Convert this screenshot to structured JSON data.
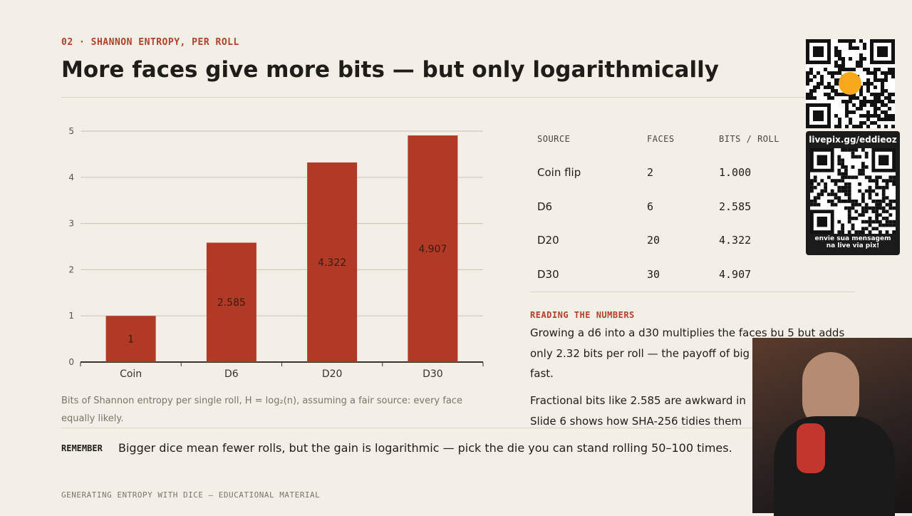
{
  "slide": {
    "eyebrow": "02 · SHANNON ENTROPY, PER ROLL",
    "title": "More faces give more bits — but only logarithmically",
    "caption": "Bits of Shannon entropy per single roll, H = log₂(n), assuming a fair source: every face equally likely.",
    "table": {
      "header": [
        "SOURCE",
        "FACES",
        "BITS / ROLL"
      ],
      "rows": [
        [
          "Coin flip",
          "2",
          "1.000"
        ],
        [
          "D6",
          "6",
          "2.585"
        ],
        [
          "D20",
          "20",
          "4.322"
        ],
        [
          "D30",
          "30",
          "4.907"
        ]
      ]
    },
    "reading": {
      "title": "READING THE NUMBERS",
      "lines": [
        "Growing a d6 into a d30 multiplies the faces bu 5 but adds",
        "only 2.32 bits per roll — the payoff of big",
        "fast."
      ],
      "lines2": [
        "Fractional bits like 2.585 are awkward in",
        "Slide 6 shows how SHA-256 tidies them"
      ]
    },
    "remember": {
      "label": "REMEMBER",
      "text": "Bigger dice mean fewer rolls, but the gain is logarithmic — pick the die you can stand rolling 50–100 times."
    },
    "footer": "GENERATING ENTROPY WITH DICE — EDUCATIONAL MATERIAL"
  },
  "overlay": {
    "url": "livepix.gg/eddieoz",
    "message": "envie sua mensagem na live via pix!"
  },
  "chart_data": {
    "type": "bar",
    "categories": [
      "Coin",
      "D6",
      "D20",
      "D30"
    ],
    "values": [
      1,
      2.585,
      4.322,
      4.907
    ],
    "color": "#b03a26",
    "ylim": [
      0,
      5
    ],
    "yticks": [
      0,
      1,
      2,
      3,
      4,
      5
    ],
    "grid": true
  }
}
